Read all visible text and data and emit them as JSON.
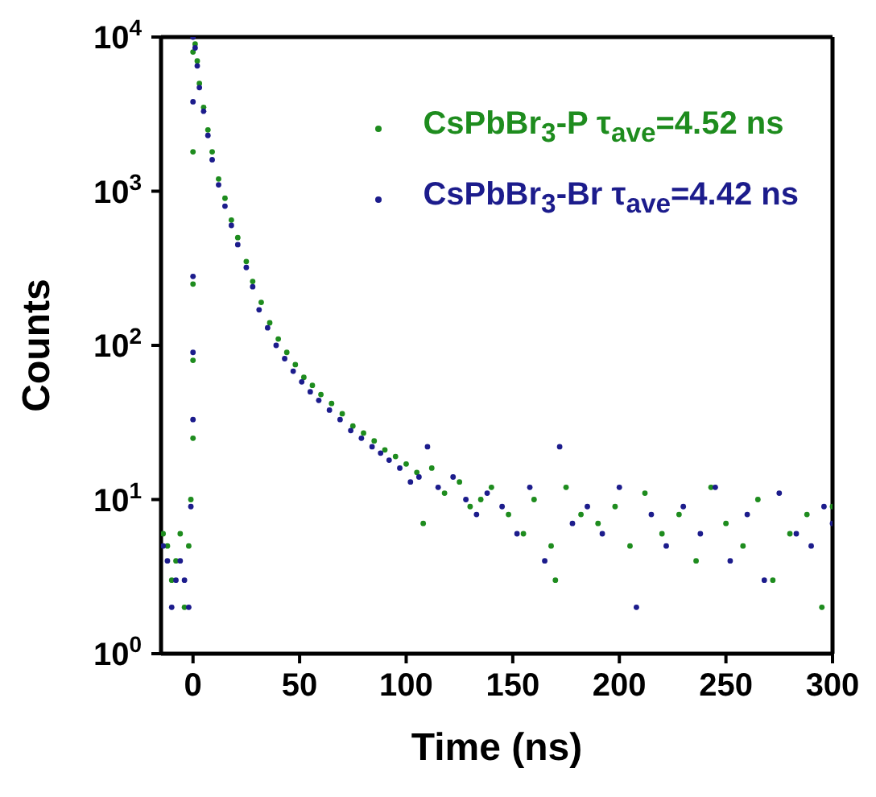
{
  "chart_data": {
    "type": "scatter",
    "xlabel": "Time (ns)",
    "ylabel": "Counts",
    "log": "y",
    "marker": "circle",
    "legend": "top right",
    "xlim": [
      -15,
      300
    ],
    "xticks": [
      0,
      50,
      100,
      150,
      200,
      250,
      300
    ],
    "ylim": [
      1,
      10000
    ],
    "yticks": [
      {
        "value": 1,
        "label": "10$^{0}$"
      },
      {
        "value": 10,
        "label": "10$^{1}$"
      },
      {
        "value": 100,
        "label": "10$^{2}$"
      },
      {
        "value": 1000,
        "label": "10$^{3}$"
      },
      {
        "value": 10000,
        "label": "10$^{4}$"
      }
    ],
    "series": [
      {
        "name": "CsPbBr$_{3}$-P τ$_{ave}$=4.52 ns",
        "color": "#1e8c1e",
        "x": [
          -14,
          -12,
          -10,
          -8,
          -6,
          -4,
          -2,
          -1,
          0,
          0,
          0,
          0,
          0,
          1,
          2,
          3,
          5,
          7,
          9,
          12,
          15,
          18,
          21,
          25,
          28,
          32,
          36,
          40,
          44,
          48,
          52,
          56,
          60,
          65,
          70,
          75,
          80,
          85,
          90,
          95,
          100,
          105,
          108,
          112,
          118,
          125,
          130,
          135,
          140,
          148,
          155,
          160,
          168,
          170,
          175,
          182,
          190,
          198,
          205,
          212,
          220,
          228,
          236,
          243,
          250,
          258,
          265,
          272,
          280,
          288,
          295,
          300
        ],
        "values": [
          6,
          5,
          3,
          4,
          6,
          2,
          5,
          10,
          25,
          80,
          250,
          1800,
          8000,
          9000,
          7000,
          5000,
          3500,
          2500,
          1800,
          1200,
          900,
          650,
          500,
          350,
          260,
          190,
          140,
          110,
          90,
          75,
          62,
          55,
          48,
          42,
          36,
          30,
          27,
          24,
          21,
          19,
          17,
          15,
          7,
          16,
          11,
          13,
          9,
          10,
          12,
          8,
          6,
          10,
          5,
          3,
          12,
          8,
          7,
          9,
          5,
          11,
          6,
          8,
          4,
          12,
          7,
          5,
          10,
          3,
          6,
          8,
          2,
          9
        ]
      },
      {
        "name": "CsPbBr$_{3}$-Br τ$_{ave}$=4.42 ns",
        "color": "#1c1c8c",
        "x": [
          -14,
          -12,
          -10,
          -8,
          -6,
          -4,
          -2,
          -1,
          0,
          0,
          0,
          0,
          0,
          1,
          2,
          3,
          5,
          7,
          9,
          12,
          15,
          18,
          21,
          25,
          28,
          31,
          35,
          39,
          43,
          47,
          51,
          55,
          59,
          64,
          69,
          74,
          79,
          84,
          88,
          92,
          97,
          102,
          106,
          110,
          115,
          122,
          128,
          133,
          138,
          145,
          152,
          158,
          165,
          172,
          178,
          185,
          192,
          200,
          208,
          215,
          222,
          230,
          238,
          245,
          252,
          260,
          268,
          275,
          283,
          290,
          296,
          300
        ],
        "values": [
          5,
          4,
          2,
          3,
          4,
          3,
          2,
          9,
          33,
          90,
          280,
          3800,
          10000,
          8500,
          6500,
          4700,
          3300,
          2300,
          1600,
          1100,
          800,
          600,
          450,
          320,
          240,
          170,
          130,
          100,
          82,
          68,
          58,
          50,
          44,
          38,
          33,
          28,
          25,
          22,
          20,
          18,
          16,
          13,
          14,
          22,
          12,
          14,
          10,
          8,
          11,
          9,
          6,
          12,
          4,
          22,
          7,
          9,
          6,
          12,
          2,
          8,
          5,
          9,
          6,
          12,
          4,
          8,
          3,
          11,
          6,
          5,
          9,
          7
        ]
      }
    ]
  }
}
